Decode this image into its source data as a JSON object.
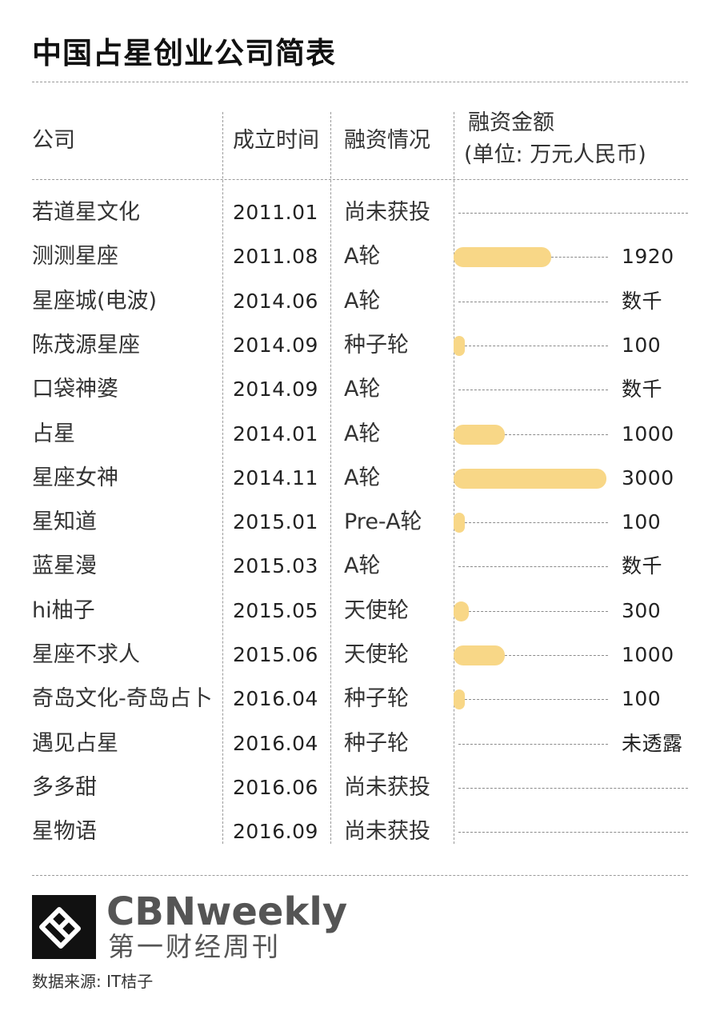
{
  "title": "中国占星创业公司简表",
  "headers": {
    "company": "公司",
    "founded": "成立时间",
    "funding_stage": "融资情况",
    "amount_line1": "融资金额",
    "amount_line2": "(单位: 万元人民币)"
  },
  "rows": [
    {
      "company": "若道星文化",
      "founded": "2011.01",
      "stage": "尚未获投",
      "amount": ""
    },
    {
      "company": "测测星座",
      "founded": "2011.08",
      "stage": "A轮",
      "amount": "1920"
    },
    {
      "company": "星座城(电波)",
      "founded": "2014.06",
      "stage": "A轮",
      "amount": "数千"
    },
    {
      "company": "陈茂源星座",
      "founded": "2014.09",
      "stage": "种子轮",
      "amount": "100"
    },
    {
      "company": "口袋神婆",
      "founded": "2014.09",
      "stage": "A轮",
      "amount": "数千"
    },
    {
      "company": "占星",
      "founded": "2014.01",
      "stage": "A轮",
      "amount": "1000"
    },
    {
      "company": "星座女神",
      "founded": "2014.11",
      "stage": "A轮",
      "amount": "3000"
    },
    {
      "company": "星知道",
      "founded": "2015.01",
      "stage": "Pre-A轮",
      "amount": "100"
    },
    {
      "company": "蓝星漫",
      "founded": "2015.03",
      "stage": "A轮",
      "amount": "数千"
    },
    {
      "company": "hi柚子",
      "founded": "2015.05",
      "stage": "天使轮",
      "amount": "300"
    },
    {
      "company": "星座不求人",
      "founded": "2015.06",
      "stage": "天使轮",
      "amount": "1000"
    },
    {
      "company": "奇岛文化-奇岛占卜",
      "founded": "2016.04",
      "stage": "种子轮",
      "amount": "100"
    },
    {
      "company": "遇见占星",
      "founded": "2016.04",
      "stage": "种子轮",
      "amount": "未透露"
    },
    {
      "company": "多多甜",
      "founded": "2016.06",
      "stage": "尚未获投",
      "amount": ""
    },
    {
      "company": "星物语",
      "founded": "2016.09",
      "stage": "尚未获投",
      "amount": ""
    }
  ],
  "chart_data": {
    "type": "bar",
    "orientation": "horizontal",
    "categories": [
      "若道星文化",
      "测测星座",
      "星座城(电波)",
      "陈茂源星座",
      "口袋神婆",
      "占星",
      "星座女神",
      "星知道",
      "蓝星漫",
      "hi柚子",
      "星座不求人",
      "奇岛文化-奇岛占卜",
      "遇见占星",
      "多多甜",
      "星物语"
    ],
    "values": [
      null,
      1920,
      null,
      100,
      null,
      1000,
      3000,
      100,
      null,
      300,
      1000,
      100,
      null,
      null,
      null
    ],
    "xlim": [
      0,
      3000
    ],
    "bar_color": "#f8d787"
  },
  "brand": {
    "name": "CBNweekly",
    "subtitle": "第一财经周刊"
  },
  "source": "数据来源: IT桔子",
  "colors": {
    "bar": "#f8d787",
    "logo_bg": "#111111",
    "brand_text": "#555555"
  }
}
